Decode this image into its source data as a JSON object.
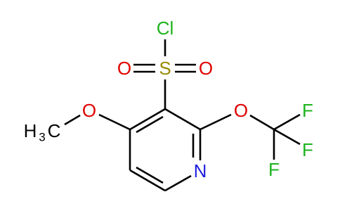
{
  "atoms": {
    "chlorine": "Cl",
    "sulfur": "S",
    "sulfonyl_oxygen_left": "O",
    "sulfonyl_oxygen_right": "O",
    "methoxy_oxygen": "O",
    "methyl": [
      "H",
      "3",
      "C"
    ],
    "ether_oxygen": "O",
    "fluorine_top": "F",
    "fluorine_right": "F",
    "fluorine_bottom": "F",
    "nitrogen": "N"
  }
}
